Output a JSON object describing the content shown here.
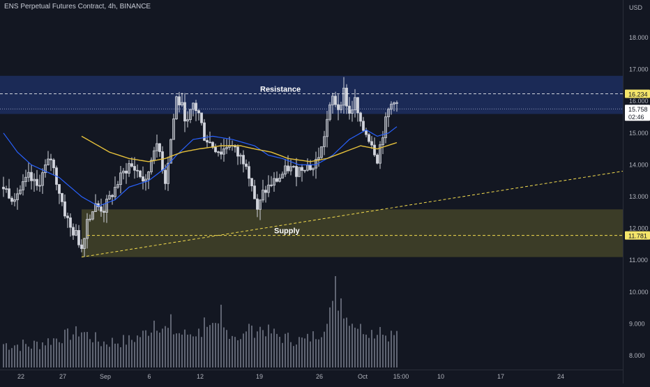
{
  "title": "ENS Perpetual Futures Contract, 4h, BINANCE",
  "chart_data": {
    "type": "candlestick",
    "title": "ENS Perpetual Futures Contract, 4h, BINANCE",
    "currency": "USD",
    "ylim": [
      7.6,
      18.9
    ],
    "y_ticks": [
      "18.000",
      "17.000",
      "16.000",
      "15.000",
      "14.000",
      "13.000",
      "12.000",
      "11.000",
      "10.000",
      "9.000",
      "8.000"
    ],
    "y_tick_values": [
      18,
      17,
      16,
      15,
      14,
      13,
      12,
      11,
      10,
      9,
      8
    ],
    "x_ticks": [
      "22",
      "27",
      "Sep",
      "6",
      "12",
      "19",
      "26",
      "Oct",
      "15:00",
      "10",
      "17",
      "24"
    ],
    "price_anchors": [
      {
        "t": 0,
        "p": 13.3
      },
      {
        "t": 3,
        "p": 13.0
      },
      {
        "t": 6,
        "p": 13.2
      },
      {
        "t": 9,
        "p": 13.6
      },
      {
        "t": 12,
        "p": 13.3
      },
      {
        "t": 15,
        "p": 13.9
      },
      {
        "t": 17,
        "p": 14.2
      },
      {
        "t": 19,
        "p": 13.5
      },
      {
        "t": 22,
        "p": 12.5
      },
      {
        "t": 24,
        "p": 12.0
      },
      {
        "t": 26,
        "p": 11.8
      },
      {
        "t": 28,
        "p": 11.4
      },
      {
        "t": 30,
        "p": 12.3
      },
      {
        "t": 33,
        "p": 12.7
      },
      {
        "t": 36,
        "p": 12.6
      },
      {
        "t": 39,
        "p": 13.1
      },
      {
        "t": 42,
        "p": 13.6
      },
      {
        "t": 45,
        "p": 14.0
      },
      {
        "t": 48,
        "p": 13.8
      },
      {
        "t": 51,
        "p": 13.4
      },
      {
        "t": 54,
        "p": 14.6
      },
      {
        "t": 56,
        "p": 14.4
      },
      {
        "t": 58,
        "p": 13.5
      },
      {
        "t": 60,
        "p": 14.8
      },
      {
        "t": 62,
        "p": 16.1
      },
      {
        "t": 64,
        "p": 15.8
      },
      {
        "t": 66,
        "p": 15.3
      },
      {
        "t": 68,
        "p": 15.9
      },
      {
        "t": 70,
        "p": 15.6
      },
      {
        "t": 72,
        "p": 14.9
      },
      {
        "t": 75,
        "p": 14.6
      },
      {
        "t": 78,
        "p": 14.4
      },
      {
        "t": 81,
        "p": 14.7
      },
      {
        "t": 84,
        "p": 14.3
      },
      {
        "t": 87,
        "p": 14.1
      },
      {
        "t": 89,
        "p": 13.4
      },
      {
        "t": 91,
        "p": 12.5
      },
      {
        "t": 93,
        "p": 13.1
      },
      {
        "t": 96,
        "p": 13.4
      },
      {
        "t": 99,
        "p": 13.6
      },
      {
        "t": 102,
        "p": 13.9
      },
      {
        "t": 105,
        "p": 13.8
      },
      {
        "t": 108,
        "p": 14.0
      },
      {
        "t": 111,
        "p": 13.9
      },
      {
        "t": 114,
        "p": 14.5
      },
      {
        "t": 116,
        "p": 15.4
      },
      {
        "t": 118,
        "p": 16.1
      },
      {
        "t": 120,
        "p": 15.8
      },
      {
        "t": 122,
        "p": 16.3
      },
      {
        "t": 124,
        "p": 15.6
      },
      {
        "t": 126,
        "p": 16.0
      },
      {
        "t": 128,
        "p": 15.2
      },
      {
        "t": 130,
        "p": 15.0
      },
      {
        "t": 132,
        "p": 14.7
      },
      {
        "t": 134,
        "p": 14.2
      },
      {
        "t": 136,
        "p": 15.0
      },
      {
        "t": 138,
        "p": 15.7
      },
      {
        "t": 140,
        "p": 16.1
      },
      {
        "t": 141,
        "p": 15.9
      }
    ],
    "volume_anchors": [
      {
        "t": 0,
        "v": 8.3
      },
      {
        "t": 10,
        "v": 8.25
      },
      {
        "t": 20,
        "v": 8.5
      },
      {
        "t": 28,
        "v": 8.7
      },
      {
        "t": 35,
        "v": 8.35
      },
      {
        "t": 45,
        "v": 8.4
      },
      {
        "t": 50,
        "v": 8.6
      },
      {
        "t": 55,
        "v": 8.9
      },
      {
        "t": 60,
        "v": 8.7
      },
      {
        "t": 65,
        "v": 8.6
      },
      {
        "t": 72,
        "v": 8.7
      },
      {
        "t": 78,
        "v": 8.8
      },
      {
        "t": 85,
        "v": 8.5
      },
      {
        "t": 92,
        "v": 8.8
      },
      {
        "t": 100,
        "v": 8.5
      },
      {
        "t": 108,
        "v": 8.4
      },
      {
        "t": 114,
        "v": 8.7
      },
      {
        "t": 118,
        "v": 9.5
      },
      {
        "t": 122,
        "v": 9.2
      },
      {
        "t": 128,
        "v": 8.8
      },
      {
        "t": 135,
        "v": 8.6
      },
      {
        "t": 141,
        "v": 8.6
      }
    ],
    "volume_spikes": [
      {
        "t": 54,
        "v": 9.1
      },
      {
        "t": 60,
        "v": 9.3
      },
      {
        "t": 72,
        "v": 9.2
      },
      {
        "t": 78,
        "v": 9.6
      },
      {
        "t": 88,
        "v": 9.0
      },
      {
        "t": 116,
        "v": 9.0
      },
      {
        "t": 119,
        "v": 10.5
      },
      {
        "t": 121,
        "v": 9.8
      },
      {
        "t": 135,
        "v": 8.9
      }
    ],
    "ma_fast": [
      {
        "t": 0,
        "p": 15.0
      },
      {
        "t": 5,
        "p": 14.4
      },
      {
        "t": 10,
        "p": 14.0
      },
      {
        "t": 20,
        "p": 13.6
      },
      {
        "t": 28,
        "p": 13.0
      },
      {
        "t": 34,
        "p": 12.7
      },
      {
        "t": 40,
        "p": 12.9
      },
      {
        "t": 45,
        "p": 13.3
      },
      {
        "t": 52,
        "p": 13.5
      },
      {
        "t": 58,
        "p": 13.9
      },
      {
        "t": 62,
        "p": 14.3
      },
      {
        "t": 68,
        "p": 14.8
      },
      {
        "t": 75,
        "p": 14.9
      },
      {
        "t": 82,
        "p": 14.8
      },
      {
        "t": 90,
        "p": 14.6
      },
      {
        "t": 95,
        "p": 14.3
      },
      {
        "t": 100,
        "p": 14.2
      },
      {
        "t": 106,
        "p": 14.0
      },
      {
        "t": 112,
        "p": 14.0
      },
      {
        "t": 118,
        "p": 14.3
      },
      {
        "t": 124,
        "p": 14.8
      },
      {
        "t": 130,
        "p": 15.1
      },
      {
        "t": 134,
        "p": 14.9
      },
      {
        "t": 138,
        "p": 15.0
      },
      {
        "t": 141,
        "p": 15.2
      }
    ],
    "ma_slow": [
      {
        "t": 28,
        "p": 14.9
      },
      {
        "t": 32,
        "p": 14.7
      },
      {
        "t": 38,
        "p": 14.4
      },
      {
        "t": 45,
        "p": 14.2
      },
      {
        "t": 52,
        "p": 14.1
      },
      {
        "t": 58,
        "p": 14.2
      },
      {
        "t": 64,
        "p": 14.4
      },
      {
        "t": 70,
        "p": 14.5
      },
      {
        "t": 78,
        "p": 14.6
      },
      {
        "t": 85,
        "p": 14.6
      },
      {
        "t": 90,
        "p": 14.5
      },
      {
        "t": 96,
        "p": 14.4
      },
      {
        "t": 102,
        "p": 14.2
      },
      {
        "t": 110,
        "p": 14.1
      },
      {
        "t": 116,
        "p": 14.2
      },
      {
        "t": 122,
        "p": 14.4
      },
      {
        "t": 128,
        "p": 14.6
      },
      {
        "t": 134,
        "p": 14.5
      },
      {
        "t": 141,
        "p": 14.7
      }
    ],
    "resistance_zone": [
      15.6,
      16.8
    ],
    "supply_zone": [
      11.1,
      12.6
    ],
    "resistance_level": 16.234,
    "current_price": 15.758,
    "supply_level": 11.781,
    "trendline": [
      {
        "t": 28,
        "p": 11.1
      },
      {
        "t": 222,
        "p": 13.8
      }
    ],
    "annotations": [
      {
        "text": "Resistance",
        "t": 92,
        "p": 16.3
      },
      {
        "text": "Supply",
        "t": 97,
        "p": 11.85
      }
    ]
  },
  "price_tags": {
    "resistance": "16.234",
    "current": "15.758",
    "countdown": "02:46",
    "supply": "11.781"
  },
  "colors": {
    "background": "#131722",
    "candle": "#d1d4dc",
    "volume": "#6f7381",
    "ma_fast": "#2962ff",
    "ma_slow": "#e6c13b",
    "resistance_zone": "#1b2b5a",
    "supply_zone": "#3d3e28",
    "resistance_line": "#ffffff",
    "supply_line": "#f6de4f",
    "axis_text": "#b2b5be",
    "resistance_tag_bg": "#f4e56a",
    "supply_tag_bg": "#f4e56a"
  }
}
